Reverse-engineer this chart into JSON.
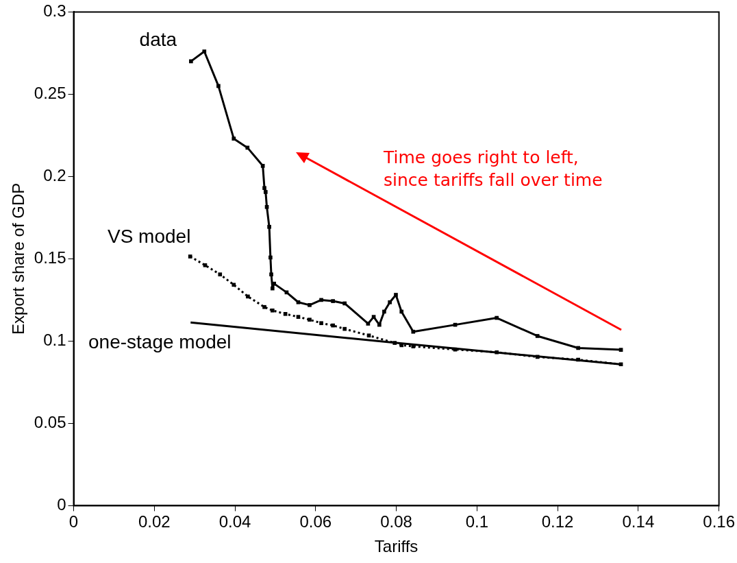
{
  "chart_data": {
    "type": "line",
    "xlabel": "Tariffs",
    "ylabel": "Export share of GDP",
    "xlim": [
      0,
      0.16
    ],
    "xticks": [
      0,
      0.02,
      0.04,
      0.06,
      0.08,
      0.1,
      0.12,
      0.14,
      0.16
    ],
    "ylim": [
      0,
      0.3
    ],
    "yticks": [
      0,
      0.05,
      0.1,
      0.15,
      0.2,
      0.25,
      0.3
    ],
    "grid": false,
    "legend": false,
    "annotations": [
      "Time goes right to left,\nsince tariffs fall over time"
    ],
    "series": [
      {
        "name": "data",
        "color": "#000000",
        "marker": "square",
        "line_style": "solid",
        "x": [
          0.0291,
          0.0324,
          0.0359,
          0.0397,
          0.0431,
          0.0469,
          0.0473,
          0.0476,
          0.0479,
          0.0485,
          0.0488,
          0.049,
          0.0493,
          0.0497,
          0.0528,
          0.0557,
          0.0585,
          0.0614,
          0.0643,
          0.0672,
          0.073,
          0.0744,
          0.0758,
          0.077,
          0.0784,
          0.0799,
          0.0813,
          0.0842,
          0.0946,
          0.1049,
          0.115,
          0.1251,
          0.1357
        ],
        "values": [
          0.27,
          0.276,
          0.255,
          0.223,
          0.2175,
          0.2065,
          0.193,
          0.1906,
          0.1815,
          0.1694,
          0.1508,
          0.1405,
          0.132,
          0.1349,
          0.1296,
          0.1236,
          0.1219,
          0.125,
          0.1243,
          0.1229,
          0.1106,
          0.1147,
          0.1099,
          0.1179,
          0.1236,
          0.1281,
          0.1179,
          0.1057,
          0.1099,
          0.1141,
          0.1031,
          0.0958,
          0.0947
        ]
      },
      {
        "name": "VS model",
        "color": "#000000",
        "marker": "square",
        "line_style": "dotted",
        "x": [
          0.0289,
          0.0326,
          0.0363,
          0.0397,
          0.0432,
          0.0473,
          0.0493,
          0.0525,
          0.0557,
          0.0585,
          0.0614,
          0.0643,
          0.0672,
          0.0732,
          0.0796,
          0.0813,
          0.0842,
          0.0946,
          0.1049,
          0.115,
          0.1251,
          0.1357
        ],
        "values": [
          0.1514,
          0.1461,
          0.1405,
          0.1342,
          0.1271,
          0.1207,
          0.1186,
          0.1165,
          0.1147,
          0.113,
          0.1109,
          0.1095,
          0.1074,
          0.1034,
          0.0989,
          0.0975,
          0.0968,
          0.0949,
          0.0932,
          0.0904,
          0.0887,
          0.0859
        ]
      },
      {
        "name": "one-stage model",
        "color": "#000000",
        "marker": "none",
        "line_style": "solid",
        "x": [
          0.029,
          0.0796,
          0.1356
        ],
        "values": [
          0.1113,
          0.099,
          0.0859
        ]
      }
    ]
  }
}
